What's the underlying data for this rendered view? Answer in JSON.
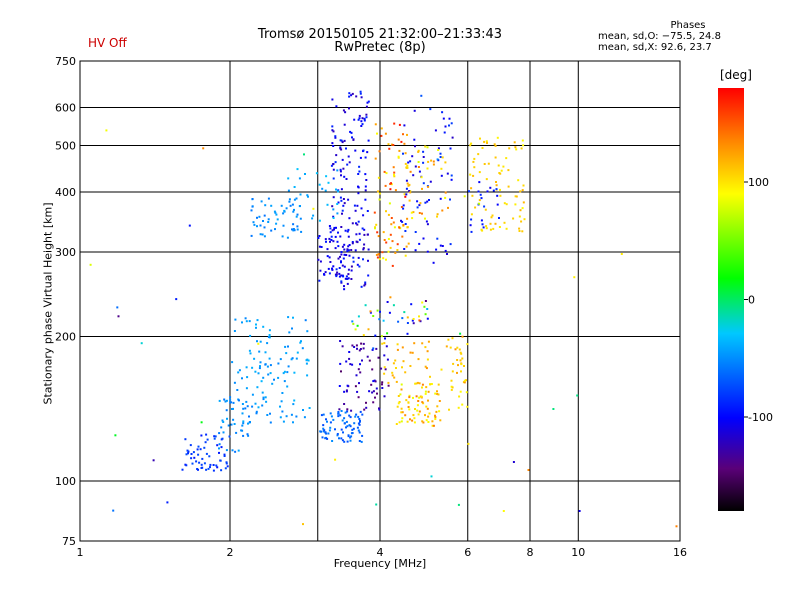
{
  "status": {
    "hv_text": "HV Off",
    "hv_color": "#cc0000"
  },
  "header": {
    "title_line1": "Tromsø 20150105 21:32:00–21:33:43",
    "title_line2": "RwPretec (8p)"
  },
  "phases": {
    "title": "Phases",
    "line_o": "mean, sd,O: −75.5, 24.8",
    "line_x": "mean, sd,X:  92.6, 23.7"
  },
  "chart_data": {
    "type": "scatter",
    "xlabel": "Frequency [MHz]",
    "ylabel": "Stationary phase Virtual Height [km]",
    "xscale": "log",
    "yscale": "log",
    "xlim": [
      1,
      16
    ],
    "ylim": [
      75,
      750
    ],
    "x_ticks": [
      1,
      2,
      4,
      6,
      8,
      10,
      16
    ],
    "x_tick_labels": [
      "1",
      "2",
      "4",
      "6",
      "8",
      "10",
      "16"
    ],
    "x_gridlines": [
      2,
      3,
      4,
      6,
      8,
      10
    ],
    "y_ticks": [
      75,
      100,
      200,
      300,
      400,
      500,
      600,
      750
    ],
    "y_tick_labels": [
      "75",
      "100",
      "200",
      "300",
      "400",
      "500",
      "600",
      "750"
    ],
    "y_gridlines": [
      100,
      200,
      300,
      400,
      500,
      600
    ],
    "grid": true,
    "colorbar": {
      "label": "[deg]",
      "min": -180,
      "max": 180,
      "ticks": [
        100,
        0,
        -100
      ],
      "tick_labels": [
        "100",
        "0",
        "-100"
      ],
      "colormap": [
        "#000000",
        "#5a0078",
        "#0000ff",
        "#00c8ff",
        "#00ff00",
        "#ffff00",
        "#ff8000",
        "#ff0000"
      ]
    },
    "clusters": [
      {
        "x_range": [
          3.2,
          3.8
        ],
        "y_range": [
          250,
          650
        ],
        "phase": [
          -125,
          -85
        ],
        "count": 180
      },
      {
        "x_range": [
          3.0,
          3.5
        ],
        "y_range": [
          260,
          340
        ],
        "phase": [
          -120,
          -90
        ],
        "count": 50
      },
      {
        "x_range": [
          2.2,
          2.8
        ],
        "y_range": [
          320,
          390
        ],
        "phase": [
          -60,
          -40
        ],
        "count": 60
      },
      {
        "x_range": [
          2.6,
          3.3
        ],
        "y_range": [
          350,
          450
        ],
        "phase": [
          -50,
          -30
        ],
        "count": 25
      },
      {
        "x_range": [
          3.9,
          4.6
        ],
        "y_range": [
          280,
          560
        ],
        "phase": [
          80,
          180
        ],
        "count": 90
      },
      {
        "x_range": [
          4.4,
          5.6
        ],
        "y_range": [
          280,
          600
        ],
        "phase": [
          -120,
          -80
        ],
        "count": 70
      },
      {
        "x_range": [
          4.5,
          5.5
        ],
        "y_range": [
          350,
          500
        ],
        "phase": [
          80,
          140
        ],
        "count": 40
      },
      {
        "x_range": [
          6.0,
          7.8
        ],
        "y_range": [
          330,
          520
        ],
        "phase": [
          90,
          120
        ],
        "count": 80
      },
      {
        "x_range": [
          6.0,
          7.0
        ],
        "y_range": [
          330,
          420
        ],
        "phase": [
          -110,
          -80
        ],
        "count": 20
      },
      {
        "x_range": [
          1.6,
          2.0
        ],
        "y_range": [
          105,
          125
        ],
        "phase": [
          -95,
          -70
        ],
        "count": 60
      },
      {
        "x_range": [
          1.9,
          2.2
        ],
        "y_range": [
          115,
          150
        ],
        "phase": [
          -60,
          -40
        ],
        "count": 40
      },
      {
        "x_range": [
          2.0,
          2.9
        ],
        "y_range": [
          130,
          220
        ],
        "phase": [
          -55,
          -35
        ],
        "count": 120
      },
      {
        "x_range": [
          3.0,
          3.7
        ],
        "y_range": [
          120,
          140
        ],
        "phase": [
          -75,
          -50
        ],
        "count": 80
      },
      {
        "x_range": [
          3.3,
          4.2
        ],
        "y_range": [
          140,
          200
        ],
        "phase": [
          -150,
          -100
        ],
        "count": 70
      },
      {
        "x_range": [
          4.3,
          5.3
        ],
        "y_range": [
          130,
          160
        ],
        "phase": [
          80,
          140
        ],
        "count": 80
      },
      {
        "x_range": [
          4.0,
          6.0
        ],
        "y_range": [
          160,
          200
        ],
        "phase": [
          100,
          130
        ],
        "count": 50
      },
      {
        "x_range": [
          5.5,
          6.0
        ],
        "y_range": [
          140,
          200
        ],
        "phase": [
          90,
          110
        ],
        "count": 20
      },
      {
        "x_range": [
          3.5,
          5.0
        ],
        "y_range": [
          200,
          240
        ],
        "phase": [
          -150,
          150
        ],
        "count": 40
      },
      {
        "x_range": [
          1.0,
          16.0
        ],
        "y_range": [
          75,
          750
        ],
        "phase": [
          -140,
          140
        ],
        "count": 40
      }
    ]
  }
}
